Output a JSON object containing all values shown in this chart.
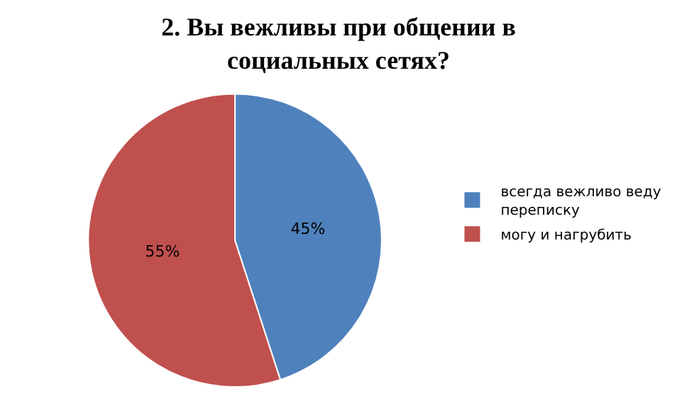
{
  "chart_data": {
    "type": "pie",
    "title": "2. Вы вежливы при общении в\nсоциальных сетях?",
    "categories": [
      "всегда вежливо веду\nпереписку",
      "могу и нагрубить"
    ],
    "values": [
      45,
      55
    ],
    "colors": [
      "#4f81bd",
      "#c0504d"
    ],
    "value_labels": [
      "45%",
      "55%"
    ],
    "legend": "right"
  }
}
